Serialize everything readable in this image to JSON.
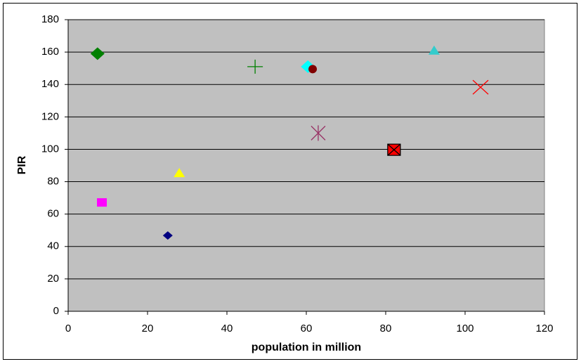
{
  "chart_data": {
    "type": "scatter",
    "x_label": "population in million",
    "y_label": "PIR",
    "xlim": [
      0,
      120
    ],
    "xticks": [
      0,
      20,
      40,
      60,
      80,
      100,
      120
    ],
    "ylim": [
      0,
      180
    ],
    "yticks": [
      0,
      20,
      40,
      60,
      80,
      100,
      120,
      140,
      160,
      180
    ],
    "grid": true,
    "series": [
      {
        "color": "#008000",
        "marker": "diamond-large",
        "x": [
          7.4
        ],
        "values": [
          159
        ]
      },
      {
        "color": "#008000",
        "marker": "plus",
        "x": [
          47.1
        ],
        "values": [
          151
        ]
      },
      {
        "color": "#00ffff",
        "marker": "diamond-large",
        "x": [
          60.4
        ],
        "values": [
          151
        ]
      },
      {
        "color": "#800000",
        "marker": "circle",
        "x": [
          61.6
        ],
        "values": [
          149.5
        ]
      },
      {
        "color": "#33cccc",
        "marker": "triangle",
        "x": [
          92.2
        ],
        "values": [
          161
        ]
      },
      {
        "color": "#ff0000",
        "marker": "x",
        "x": [
          103.9
        ],
        "values": [
          138.3
        ]
      },
      {
        "color": "#993366",
        "marker": "asterisk",
        "x": [
          63
        ],
        "values": [
          110
        ]
      },
      {
        "color": "#ff0000",
        "marker": "square-x",
        "x": [
          82.1
        ],
        "values": [
          99.7
        ]
      },
      {
        "color": "#ffff00",
        "marker": "triangle",
        "x": [
          28
        ],
        "values": [
          85.4
        ]
      },
      {
        "color": "#ff00ff",
        "marker": "square",
        "x": [
          8.5
        ],
        "values": [
          67.2
        ]
      },
      {
        "color": "#000080",
        "marker": "diamond",
        "x": [
          25.1
        ],
        "values": [
          46.8
        ]
      }
    ]
  }
}
